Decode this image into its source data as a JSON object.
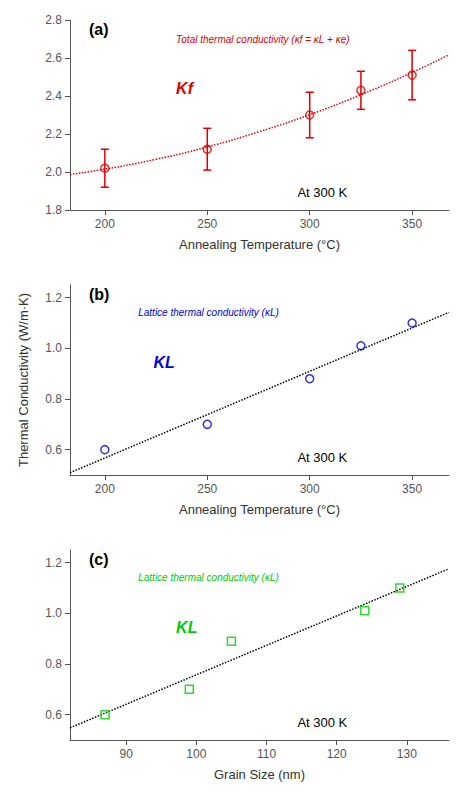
{
  "chart_data": [
    {
      "type": "scatter",
      "xlabel": "Annealing Temperature (°C)",
      "xlim": [
        183,
        368
      ],
      "xticks": [
        200,
        250,
        300,
        350
      ],
      "ylim": [
        1.8,
        2.8
      ],
      "yticks": [
        1.8,
        {
          "value": 2.0,
          "label": "2.0"
        },
        2.2,
        2.4,
        2.6,
        2.8
      ],
      "grid": false,
      "annotations": [
        "(a)",
        "Total thermal conductivity (κf = κL + κe)",
        "Kf",
        "At 300 K"
      ],
      "series": [
        {
          "type": "line",
          "line_style": "dotted",
          "color": "#dd0000",
          "x": [
            183,
            200,
            225,
            250,
            275,
            300,
            325,
            350,
            368
          ],
          "values": [
            1.987,
            2.015,
            2.067,
            2.132,
            2.211,
            2.302,
            2.407,
            2.524,
            2.617
          ]
        },
        {
          "type": "scatter",
          "marker": "circle",
          "color": "#dd0000",
          "x": [
            200,
            250,
            300,
            325,
            350
          ],
          "values": [
            2.02,
            2.12,
            2.3,
            2.43,
            2.51
          ],
          "yerr": [
            0.1,
            0.11,
            0.12,
            0.1,
            0.13
          ]
        }
      ]
    },
    {
      "type": "scatter",
      "xlabel": "Annealing Temperature (°C)",
      "ylabel": "Thermal Conductivity (W/m·K)",
      "xlim": [
        183,
        368
      ],
      "xticks": [
        200,
        250,
        300,
        350
      ],
      "ylim": [
        0.5,
        1.25
      ],
      "yticks": [
        0.6,
        0.8,
        {
          "value": 1.0,
          "label": "1.0"
        },
        1.2
      ],
      "grid": false,
      "annotations": [
        "(b)",
        "Lattice thermal conductivity (κL)",
        "KL",
        "At 300 K"
      ],
      "series": [
        {
          "type": "line",
          "line_style": "dotted",
          "color": "#000000",
          "x": [
            183,
            368
          ],
          "values": [
            0.509,
            1.142
          ]
        },
        {
          "type": "scatter",
          "marker": "circle",
          "color": "#0000dd",
          "x": [
            200,
            250,
            300,
            325,
            350
          ],
          "values": [
            0.6,
            0.7,
            0.88,
            1.01,
            1.1
          ]
        }
      ]
    },
    {
      "type": "scatter",
      "xlabel": "Grain Size (nm)",
      "xlim": [
        82,
        136
      ],
      "xticks": [
        90,
        100,
        110,
        120,
        130
      ],
      "ylim": [
        0.5,
        1.25
      ],
      "yticks": [
        0.6,
        0.8,
        {
          "value": 1.0,
          "label": "1.0"
        },
        1.2
      ],
      "grid": false,
      "annotations": [
        "(c)",
        "Lattice thermal conductivity (κL)",
        "KL",
        "At 300 K"
      ],
      "series": [
        {
          "type": "line",
          "line_style": "dotted",
          "color": "#000000",
          "x": [
            82,
            136
          ],
          "values": [
            0.548,
            1.176
          ]
        },
        {
          "type": "scatter",
          "marker": "square",
          "color": "#00cc00",
          "x": [
            87,
            99,
            105,
            124,
            129
          ],
          "values": [
            0.6,
            0.7,
            0.89,
            1.01,
            1.1
          ]
        }
      ]
    }
  ]
}
